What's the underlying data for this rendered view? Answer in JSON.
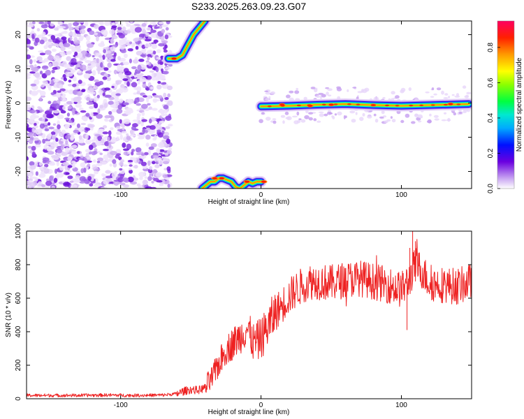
{
  "title": "S233.2025.263.09.23.G07",
  "chart_data": [
    {
      "type": "heatmap",
      "xlabel": "Height of straight line (km)",
      "ylabel": "Frequency (Hz)",
      "xlim": [
        -167,
        150
      ],
      "ylim": [
        -25,
        24
      ],
      "xticks": [
        "-100",
        "0",
        "100"
      ],
      "yticks": [
        "20",
        "10",
        "0",
        "-10",
        "-20"
      ],
      "colorbar": {
        "label": "Normalized spectral amplitude",
        "range": [
          0,
          0.95
        ],
        "ticks": [
          "0.0",
          "0.2",
          "0.4",
          "0.6",
          "0.8"
        ]
      },
      "noise_region": {
        "x_range": [
          -167,
          -66
        ]
      },
      "tracks": [
        {
          "name": "rising track",
          "x": [
            -66,
            -60,
            -56,
            -52,
            -48,
            -44,
            -40
          ],
          "y": [
            13,
            13,
            14,
            17,
            20,
            22,
            24
          ]
        },
        {
          "name": "low track",
          "x": [
            -42,
            -39,
            -36,
            -33,
            -30,
            -27,
            -24,
            -21,
            -18,
            -15,
            -12,
            -9,
            -6,
            -3,
            0
          ],
          "y": [
            -25,
            -24,
            -23,
            -23,
            -22,
            -22,
            -22.5,
            -23,
            -24.5,
            -25,
            -24,
            -23,
            -23.5,
            -23,
            -23
          ]
        },
        {
          "name": "zero track",
          "x": [
            0,
            20,
            40,
            60,
            80,
            100,
            120,
            148
          ],
          "y": [
            -1,
            -0.8,
            -0.5,
            -0.3,
            -0.6,
            -0.8,
            -0.6,
            -0.3
          ]
        }
      ],
      "bright_spots": [
        {
          "x": -62,
          "y": 13
        },
        {
          "x": -33,
          "y": -22
        },
        {
          "x": -28,
          "y": -22
        },
        {
          "x": -10,
          "y": -23
        },
        {
          "x": 2,
          "y": -23
        },
        {
          "x": 15,
          "y": -0.5
        },
        {
          "x": 35,
          "y": -0.8
        },
        {
          "x": 50,
          "y": -0.5
        },
        {
          "x": 80,
          "y": -0.6
        },
        {
          "x": 135,
          "y": -0.3
        }
      ]
    },
    {
      "type": "line",
      "xlabel": "Height of straight line (km)",
      "ylabel": "SNR (10 * v/v)",
      "xlim": [
        -167,
        150
      ],
      "ylim": [
        0,
        1000
      ],
      "xticks": [
        "-100",
        "0",
        "100"
      ],
      "yticks": [
        "1000",
        "800",
        "600",
        "400",
        "200",
        "0"
      ],
      "series": [
        {
          "name": "SNR",
          "color": "#ee2222",
          "x": [
            -167,
            -150,
            -130,
            -110,
            -90,
            -70,
            -60,
            -55,
            -50,
            -45,
            -40,
            -35,
            -30,
            -25,
            -20,
            -15,
            -10,
            -5,
            0,
            5,
            10,
            15,
            20,
            25,
            30,
            35,
            40,
            50,
            60,
            70,
            80,
            90,
            100,
            105,
            108,
            110,
            115,
            120,
            130,
            140,
            150
          ],
          "y": [
            20,
            20,
            20,
            22,
            20,
            22,
            30,
            45,
            55,
            50,
            65,
            120,
            210,
            290,
            330,
            370,
            420,
            330,
            360,
            430,
            510,
            560,
            610,
            650,
            680,
            700,
            700,
            690,
            710,
            720,
            700,
            680,
            650,
            700,
            760,
            800,
            760,
            690,
            680,
            670,
            700
          ]
        }
      ]
    }
  ]
}
